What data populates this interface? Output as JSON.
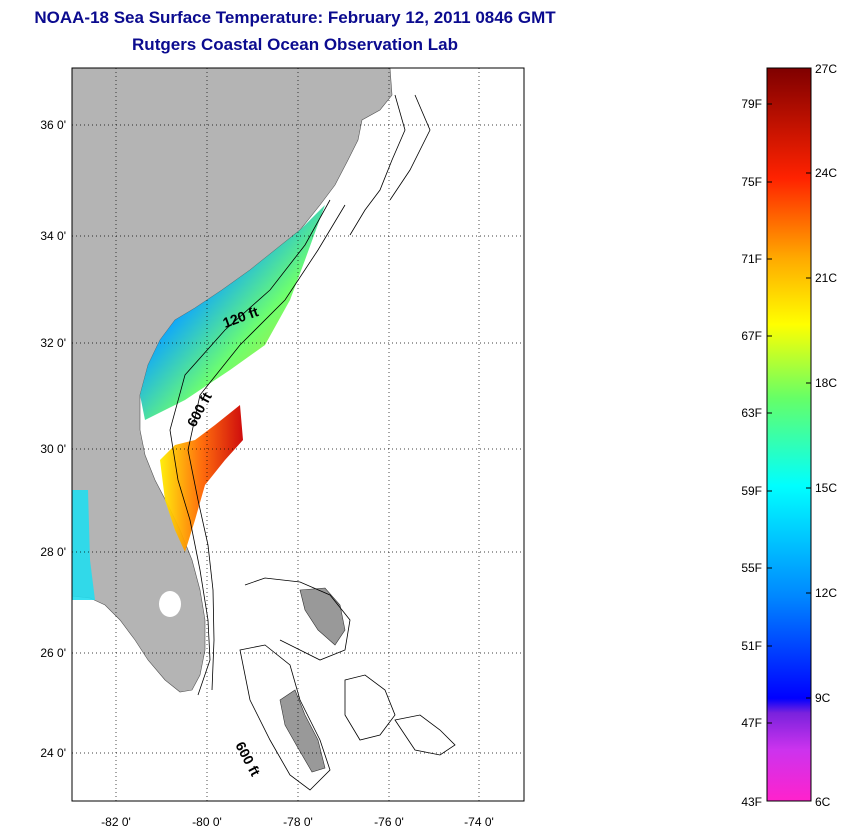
{
  "title": "NOAA-18 Sea Surface Temperature:  February 12, 2011 0846 GMT",
  "subtitle": "Rutgers Coastal Ocean Observation Lab",
  "map": {
    "lat_ticks": [
      "36 0'",
      "34 0'",
      "32 0'",
      "30 0'",
      "28 0'",
      "26 0'",
      "24 0'"
    ],
    "lon_ticks": [
      "-82 0'",
      "-80 0'",
      "-78 0'",
      "-76 0'",
      "-74 0'"
    ],
    "contour_labels": [
      "120 ft",
      "600 ft",
      "600 ft"
    ],
    "land_color": "#b4b4b4"
  },
  "colorbar": {
    "f_labels": [
      "79F",
      "75F",
      "71F",
      "67F",
      "63F",
      "59F",
      "55F",
      "51F",
      "47F",
      "43F"
    ],
    "c_labels": [
      "27C",
      "24C",
      "21C",
      "18C",
      "15C",
      "12C",
      "9C",
      "6C"
    ],
    "colors": [
      "#ff22cc",
      "#8a2be2",
      "#0000ff",
      "#00a0ff",
      "#00ffff",
      "#66ff66",
      "#ffff00",
      "#ff9900",
      "#ff2200",
      "#7f0000"
    ]
  }
}
